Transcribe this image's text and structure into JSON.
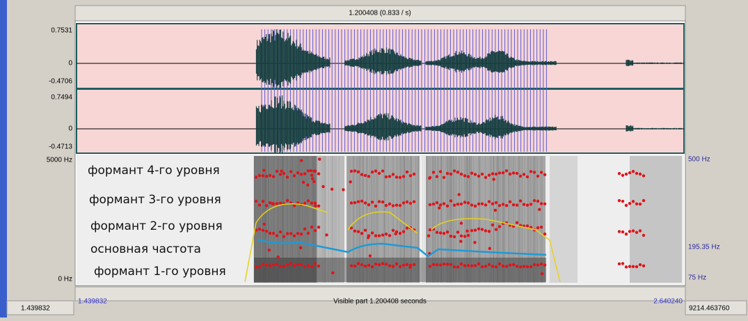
{
  "header": {
    "duration": "1.200408 (0.833 / s)"
  },
  "channels": [
    {
      "max": "0.7531",
      "zero": "0",
      "min": "-0.4706"
    },
    {
      "max": "0.7494",
      "zero": "0",
      "min": "-0.4713"
    }
  ],
  "spectrogram": {
    "top": "5000 Hz",
    "bottom": "0 Hz",
    "right_top": "500 Hz",
    "right_mid": "195.35 Hz",
    "right_bottom": "75 Hz",
    "annotations": [
      "формант 4-го уровня",
      "формант 3-го уровня",
      "формант 2-го уровня",
      "основная частота",
      "формант 1-го уровня"
    ]
  },
  "footer": {
    "start": "1.439832",
    "visible": "Visible part 1.200408 seconds",
    "end": "2.640240",
    "left_total": "1.439832",
    "right_total": "9214.463760"
  }
}
